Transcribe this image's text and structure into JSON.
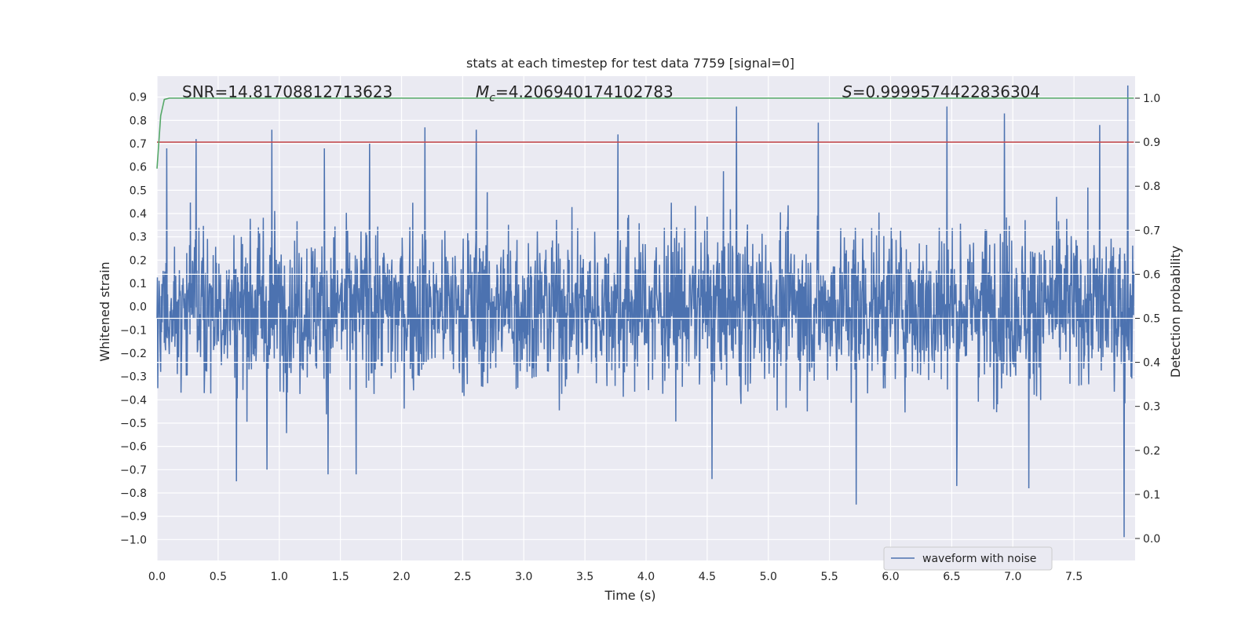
{
  "chart_data": {
    "type": "line",
    "title": "stats at each timestep for test data 7759 [signal=0]",
    "xlabel": "Time (s)",
    "ylabel": "Whitened strain",
    "y2label": "Detection probability",
    "xlim": [
      0.0,
      8.0
    ],
    "ylim": [
      -1.09,
      0.99
    ],
    "y2lim": [
      -0.05,
      1.05
    ],
    "xticks": [
      "0.0",
      "0.5",
      "1.0",
      "1.5",
      "2.0",
      "2.5",
      "3.0",
      "3.5",
      "4.0",
      "4.5",
      "5.0",
      "5.5",
      "6.0",
      "6.5",
      "7.0",
      "7.5"
    ],
    "xtick_values": [
      0.0,
      0.5,
      1.0,
      1.5,
      2.0,
      2.5,
      3.0,
      3.5,
      4.0,
      4.5,
      5.0,
      5.5,
      6.0,
      6.5,
      7.0,
      7.5
    ],
    "yticks": [
      "0.9",
      "0.8",
      "0.7",
      "0.6",
      "0.5",
      "0.4",
      "0.3",
      "0.2",
      "0.1",
      "0.0",
      "−0.1",
      "−0.2",
      "−0.3",
      "−0.4",
      "−0.5",
      "−0.6",
      "−0.7",
      "−0.8",
      "−0.9",
      "−1.0"
    ],
    "ytick_values": [
      0.9,
      0.8,
      0.7,
      0.6,
      0.5,
      0.4,
      0.3,
      0.2,
      0.1,
      0.0,
      -0.1,
      -0.2,
      -0.3,
      -0.4,
      -0.5,
      -0.6,
      -0.7,
      -0.8,
      -0.9,
      -1.0
    ],
    "y2ticks": [
      "1.0",
      "0.9",
      "0.8",
      "0.7",
      "0.6",
      "0.5",
      "0.4",
      "0.3",
      "0.2",
      "0.1",
      "0.0"
    ],
    "y2tick_values": [
      1.0,
      0.9,
      0.8,
      0.7,
      0.6,
      0.5,
      0.4,
      0.3,
      0.2,
      0.1,
      0.0
    ],
    "annotations": {
      "snr": "SNR=14.81708812713623",
      "mc_symbol": "M",
      "mc_sub": "c",
      "mc_value": "=4.206940174102783",
      "s_symbol": "S",
      "s_value": "=0.9999574422836304"
    },
    "series": [
      {
        "name": "waveform with noise",
        "axis": "left",
        "color": "#4c72b0",
        "description": "dense whitened strain noise, envelope approx -0.5..0.5 with spikes up to 0.95 and down to -1.0",
        "peaks": [
          {
            "x": 0.08,
            "y": 0.68
          },
          {
            "x": 0.32,
            "y": 0.72
          },
          {
            "x": 0.94,
            "y": 0.76
          },
          {
            "x": 1.37,
            "y": 0.68
          },
          {
            "x": 1.74,
            "y": 0.7
          },
          {
            "x": 2.19,
            "y": 0.77
          },
          {
            "x": 2.61,
            "y": 0.76
          },
          {
            "x": 3.77,
            "y": 0.74
          },
          {
            "x": 4.74,
            "y": 0.86
          },
          {
            "x": 5.41,
            "y": 0.79
          },
          {
            "x": 6.46,
            "y": 0.86
          },
          {
            "x": 6.93,
            "y": 0.83
          },
          {
            "x": 7.71,
            "y": 0.78
          },
          {
            "x": 7.94,
            "y": 0.95
          }
        ],
        "troughs": [
          {
            "x": 0.65,
            "y": -0.75
          },
          {
            "x": 0.9,
            "y": -0.7
          },
          {
            "x": 1.4,
            "y": -0.72
          },
          {
            "x": 1.63,
            "y": -0.72
          },
          {
            "x": 4.54,
            "y": -0.74
          },
          {
            "x": 5.72,
            "y": -0.85
          },
          {
            "x": 6.54,
            "y": -0.77
          },
          {
            "x": 7.13,
            "y": -0.78
          },
          {
            "x": 7.91,
            "y": -0.99
          }
        ]
      },
      {
        "name": "detection probability",
        "axis": "right",
        "color": "#55a868",
        "x": [
          0.0,
          0.03,
          0.06,
          0.1,
          0.2,
          7.99
        ],
        "y": [
          0.84,
          0.96,
          0.997,
          1.0,
          1.0,
          1.0
        ]
      },
      {
        "name": "threshold",
        "axis": "right",
        "color": "#c44e52",
        "x": [
          0.0,
          7.99
        ],
        "y": [
          0.9,
          0.9
        ]
      }
    ],
    "legend": {
      "position": "bottom-right",
      "entries": [
        "waveform with noise"
      ]
    },
    "grid": true,
    "colors": {
      "background": "#eaeaf2",
      "grid": "#ffffff",
      "waveform": "#4c72b0",
      "probability": "#55a868",
      "threshold": "#c44e52"
    }
  }
}
